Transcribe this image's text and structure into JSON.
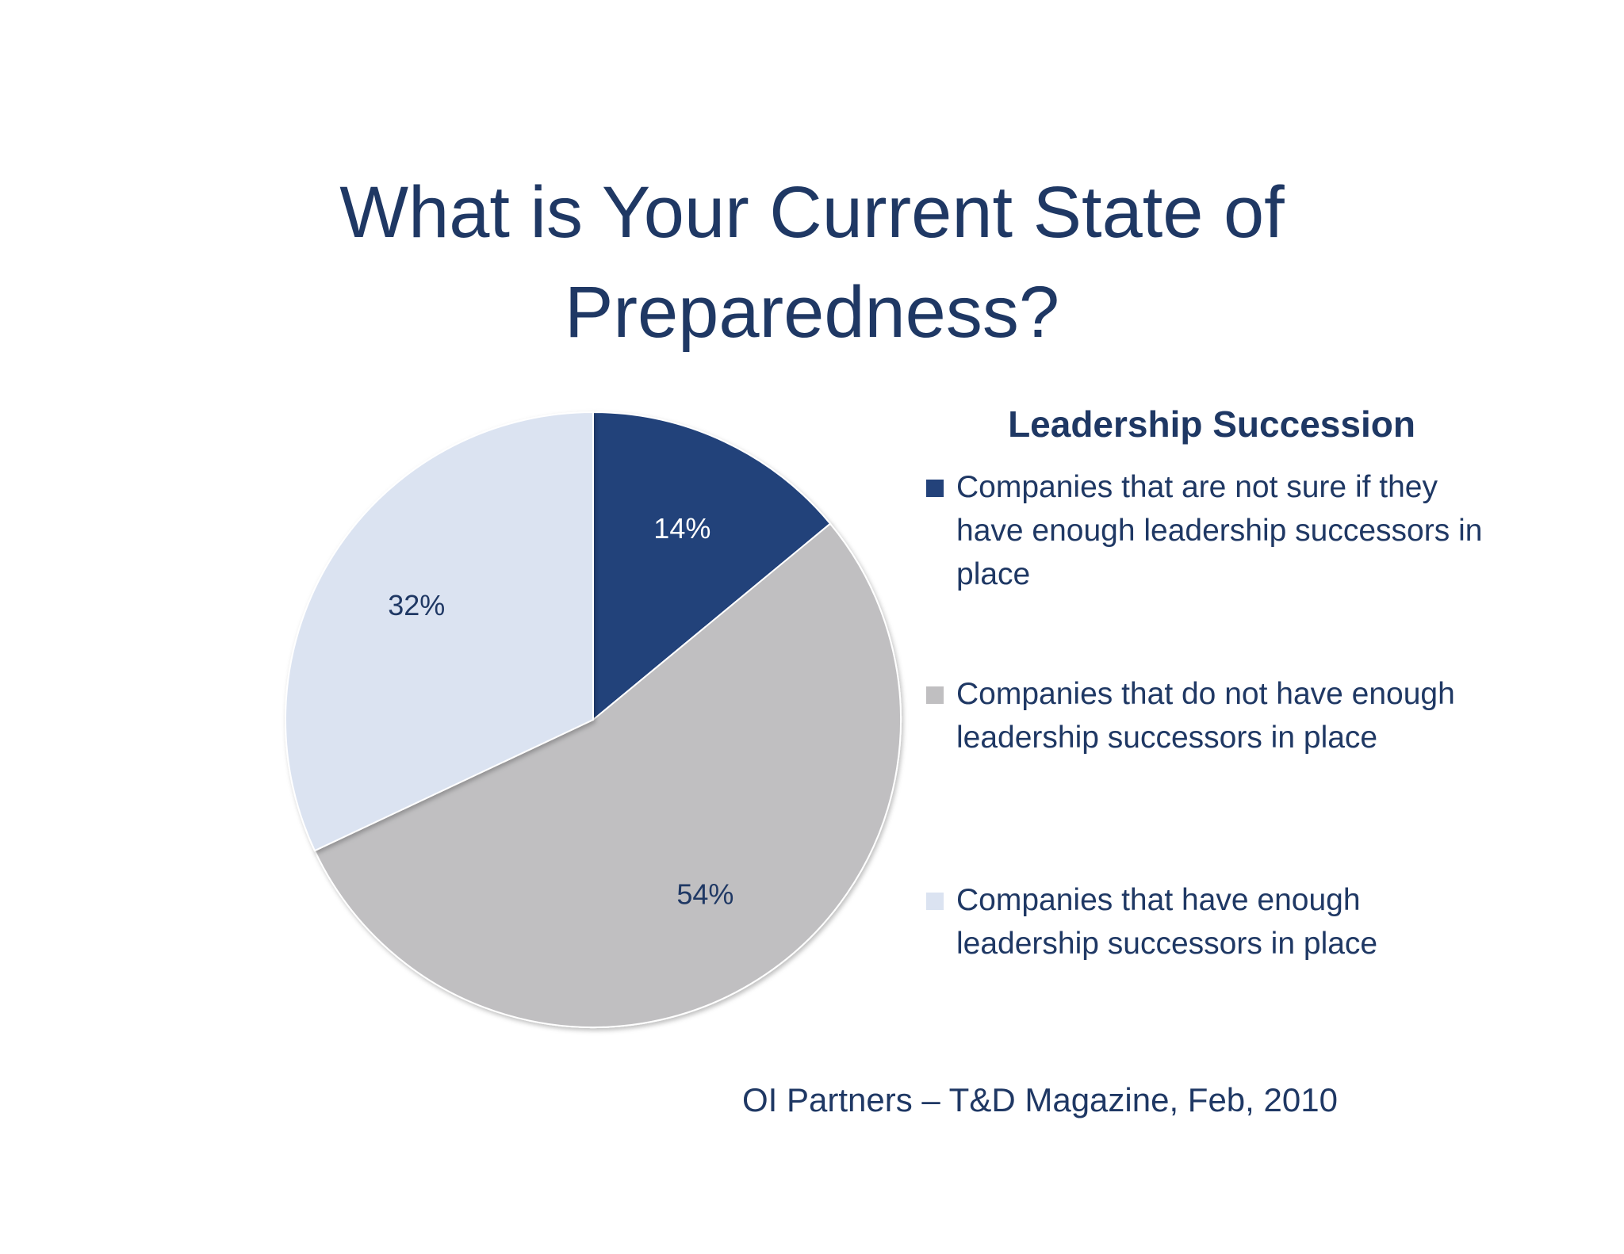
{
  "title_lines": [
    "What is Your Current State of",
    "Preparedness?"
  ],
  "source": "OI Partners – T&D Magazine, Feb, 2010",
  "chart_data": {
    "type": "pie",
    "legend_title": "Leadership Succession",
    "legend_position": "right",
    "slices": [
      {
        "label": "Companies that are not sure if they have enough leadership successors in place",
        "value": 14,
        "value_label": "14%",
        "color": "#23427a",
        "label_color": "#ffffff"
      },
      {
        "label": "Companies that do not have enough leadership successors in place",
        "value": 54,
        "value_label": "54%",
        "color": "#c0bfc1",
        "label_color": "#1f3864"
      },
      {
        "label": "Companies that have enough leadership successors in place",
        "value": 32,
        "value_label": "32%",
        "color": "#dbe3f1",
        "label_color": "#1f3864"
      }
    ]
  }
}
